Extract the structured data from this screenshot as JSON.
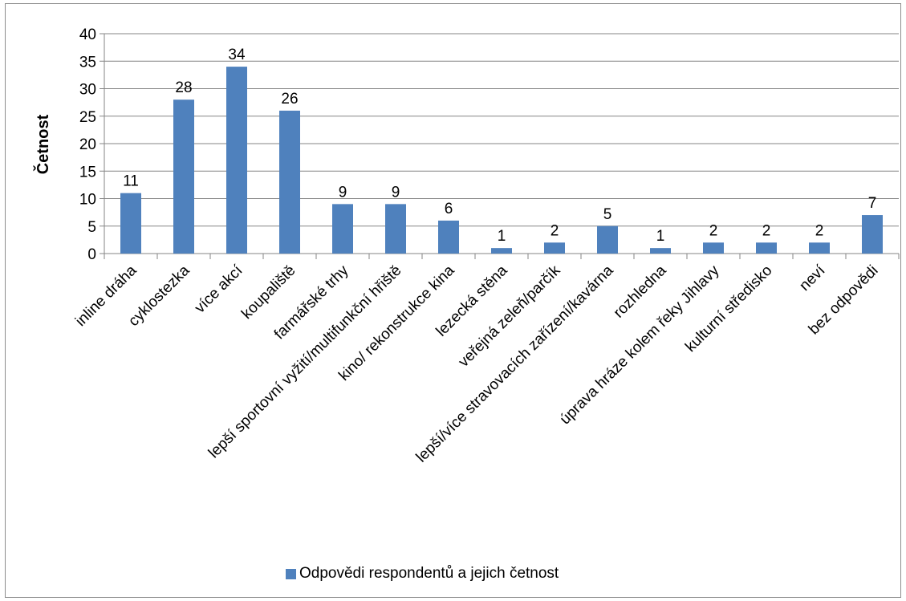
{
  "chart_data": {
    "type": "bar",
    "categories": [
      "inline dráha",
      "cyklostezka",
      "více akcí",
      "koupaliště",
      "farmářské trhy",
      "lepší sportovní vyžití/multifunkční hřiště",
      "kino/ rekonstrukce kina",
      "lezecká stěna",
      "veřejná zeleň/parčík",
      "lepší/více stravovacích zařízení/kavárna",
      "rozhledna",
      "úprava hráze kolem řeky Jihlavy",
      "kulturní středisko",
      "neví",
      "bez odpovědi"
    ],
    "series": [
      {
        "name": "Odpovědi respondentů a jejich četnost",
        "values": [
          11,
          28,
          34,
          26,
          9,
          9,
          6,
          1,
          2,
          5,
          1,
          2,
          2,
          2,
          7
        ],
        "color": "#4f81bd"
      }
    ],
    "ylabel": "Četnost",
    "xlabel": "",
    "ylim": [
      0,
      40
    ],
    "yticks": [
      0,
      5,
      10,
      15,
      20,
      25,
      30,
      35,
      40
    ],
    "grid": true,
    "legend_position": "bottom",
    "data_labels": true
  }
}
